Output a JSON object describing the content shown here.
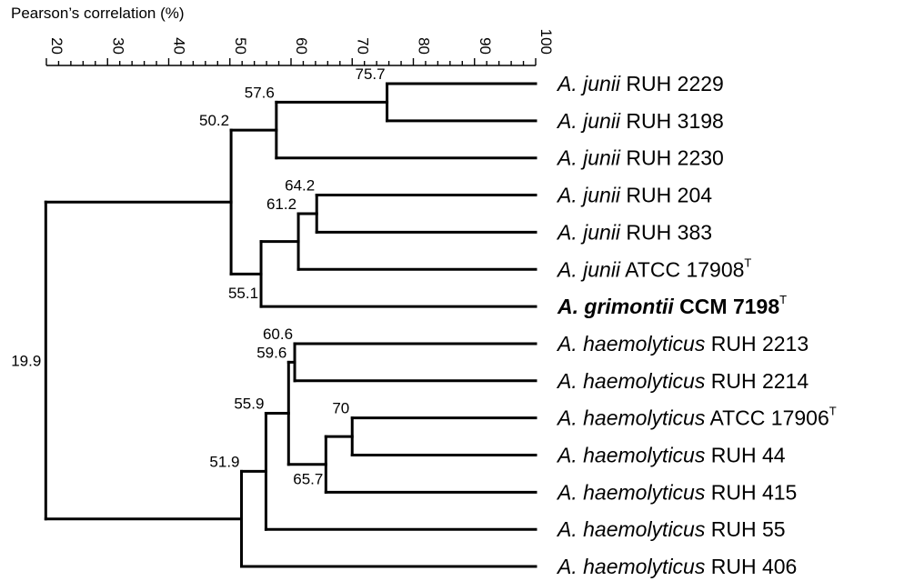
{
  "axis": {
    "title": "Pearson’s correlation (%)",
    "min": 20,
    "max": 100,
    "major_ticks": [
      "20",
      "30",
      "40",
      "50",
      "60",
      "70",
      "80",
      "90",
      "100"
    ],
    "minor_step": 2
  },
  "leaves": [
    {
      "id": "l0",
      "italic": "A. junii",
      "rest": " RUH 2229",
      "sup": "",
      "bold": false
    },
    {
      "id": "l1",
      "italic": "A. junii",
      "rest": " RUH 3198",
      "sup": "",
      "bold": false
    },
    {
      "id": "l2",
      "italic": "A. junii",
      "rest": " RUH 2230",
      "sup": "",
      "bold": false
    },
    {
      "id": "l3",
      "italic": "A. junii",
      "rest": " RUH 204",
      "sup": "",
      "bold": false
    },
    {
      "id": "l4",
      "italic": "A. junii",
      "rest": " RUH 383",
      "sup": "",
      "bold": false
    },
    {
      "id": "l5",
      "italic": "A. junii",
      "rest": " ATCC 17908",
      "sup": "T",
      "bold": false
    },
    {
      "id": "l6",
      "italic": "A. grimontii",
      "rest": " CCM 7198",
      "sup": "T",
      "bold": true
    },
    {
      "id": "l7",
      "italic": "A. haemolyticus",
      "rest": " RUH 2213",
      "sup": "",
      "bold": false
    },
    {
      "id": "l8",
      "italic": "A. haemolyticus",
      "rest": " RUH 2214",
      "sup": "",
      "bold": false
    },
    {
      "id": "l9",
      "italic": "A. haemolyticus",
      "rest": " ATCC 17906",
      "sup": "T",
      "bold": false
    },
    {
      "id": "l10",
      "italic": "A. haemolyticus",
      "rest": " RUH 44",
      "sup": "",
      "bold": false
    },
    {
      "id": "l11",
      "italic": "A. haemolyticus",
      "rest": " RUH 415",
      "sup": "",
      "bold": false
    },
    {
      "id": "l12",
      "italic": "A. haemolyticus",
      "rest": " RUH 55",
      "sup": "",
      "bold": false
    },
    {
      "id": "l13",
      "italic": "A. haemolyticus",
      "rest": " RUH 406",
      "sup": "",
      "bold": false
    }
  ],
  "nodes": [
    {
      "id": "n1",
      "value": 75.7,
      "label": "75.7",
      "children": [
        "l0",
        "l1"
      ]
    },
    {
      "id": "n2",
      "value": 57.6,
      "label": "57.6",
      "children": [
        "n1",
        "l2"
      ]
    },
    {
      "id": "n3",
      "value": 64.2,
      "label": "64.2",
      "children": [
        "l3",
        "l4"
      ]
    },
    {
      "id": "n4",
      "value": 61.2,
      "label": "61.2",
      "children": [
        "n3",
        "l5"
      ]
    },
    {
      "id": "n5",
      "value": 55.1,
      "label": "55.1",
      "children": [
        "n4",
        "l6"
      ]
    },
    {
      "id": "n6",
      "value": 50.2,
      "label": "50.2",
      "children": [
        "n2",
        "n5"
      ]
    },
    {
      "id": "n7",
      "value": 60.6,
      "label": "60.6",
      "children": [
        "l7",
        "l8"
      ]
    },
    {
      "id": "n8",
      "value": 70,
      "label": "70",
      "children": [
        "l9",
        "l10"
      ]
    },
    {
      "id": "n9",
      "value": 65.7,
      "label": "65.7",
      "children": [
        "n8",
        "l11"
      ]
    },
    {
      "id": "n10",
      "value": 59.6,
      "label": "59.6",
      "children": [
        "n7",
        "n9"
      ]
    },
    {
      "id": "n11",
      "value": 55.9,
      "label": "55.9",
      "children": [
        "n10",
        "l12"
      ]
    },
    {
      "id": "n12",
      "value": 51.9,
      "label": "51.9",
      "children": [
        "n11",
        "l13"
      ]
    },
    {
      "id": "n13",
      "value": 19.9,
      "label": "19.9",
      "children": [
        "n6",
        "n12"
      ]
    }
  ]
}
